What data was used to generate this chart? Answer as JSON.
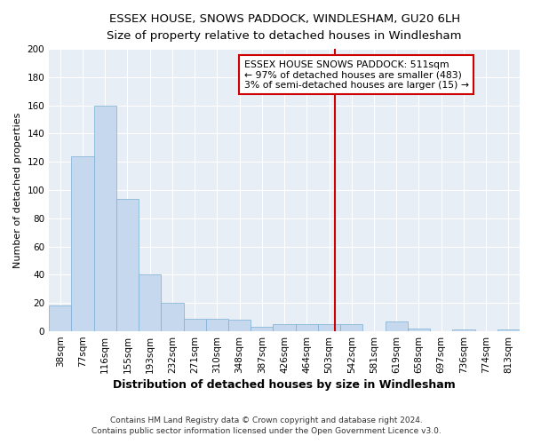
{
  "title1": "ESSEX HOUSE, SNOWS PADDOCK, WINDLESHAM, GU20 6LH",
  "title2": "Size of property relative to detached houses in Windlesham",
  "xlabel": "Distribution of detached houses by size in Windlesham",
  "ylabel": "Number of detached properties",
  "footnote1": "Contains HM Land Registry data © Crown copyright and database right 2024.",
  "footnote2": "Contains public sector information licensed under the Open Government Licence v3.0.",
  "categories": [
    "38sqm",
    "77sqm",
    "116sqm",
    "155sqm",
    "193sqm",
    "232sqm",
    "271sqm",
    "310sqm",
    "348sqm",
    "387sqm",
    "426sqm",
    "464sqm",
    "503sqm",
    "542sqm",
    "581sqm",
    "619sqm",
    "658sqm",
    "697sqm",
    "736sqm",
    "774sqm",
    "813sqm"
  ],
  "values": [
    18,
    124,
    160,
    94,
    40,
    20,
    9,
    9,
    8,
    3,
    5,
    5,
    5,
    5,
    0,
    7,
    2,
    0,
    1,
    0,
    1
  ],
  "bar_color": "#c5d8ee",
  "bar_edgecolor": "#7aafd4",
  "background_color": "#e8eef5",
  "grid_color": "#ffffff",
  "vline_x_index": 12.26,
  "vline_color": "#cc0000",
  "annotation_text": "ESSEX HOUSE SNOWS PADDOCK: 511sqm\n← 97% of detached houses are smaller (483)\n3% of semi-detached houses are larger (15) →",
  "annotation_box_edgecolor": "#cc0000",
  "ylim": [
    0,
    200
  ],
  "yticks": [
    0,
    20,
    40,
    60,
    80,
    100,
    120,
    140,
    160,
    180,
    200
  ],
  "fig_facecolor": "#ffffff",
  "title1_fontsize": 9.5,
  "title2_fontsize": 8.5,
  "xlabel_fontsize": 9,
  "ylabel_fontsize": 8,
  "tick_fontsize": 7.5,
  "footnote_fontsize": 6.5
}
